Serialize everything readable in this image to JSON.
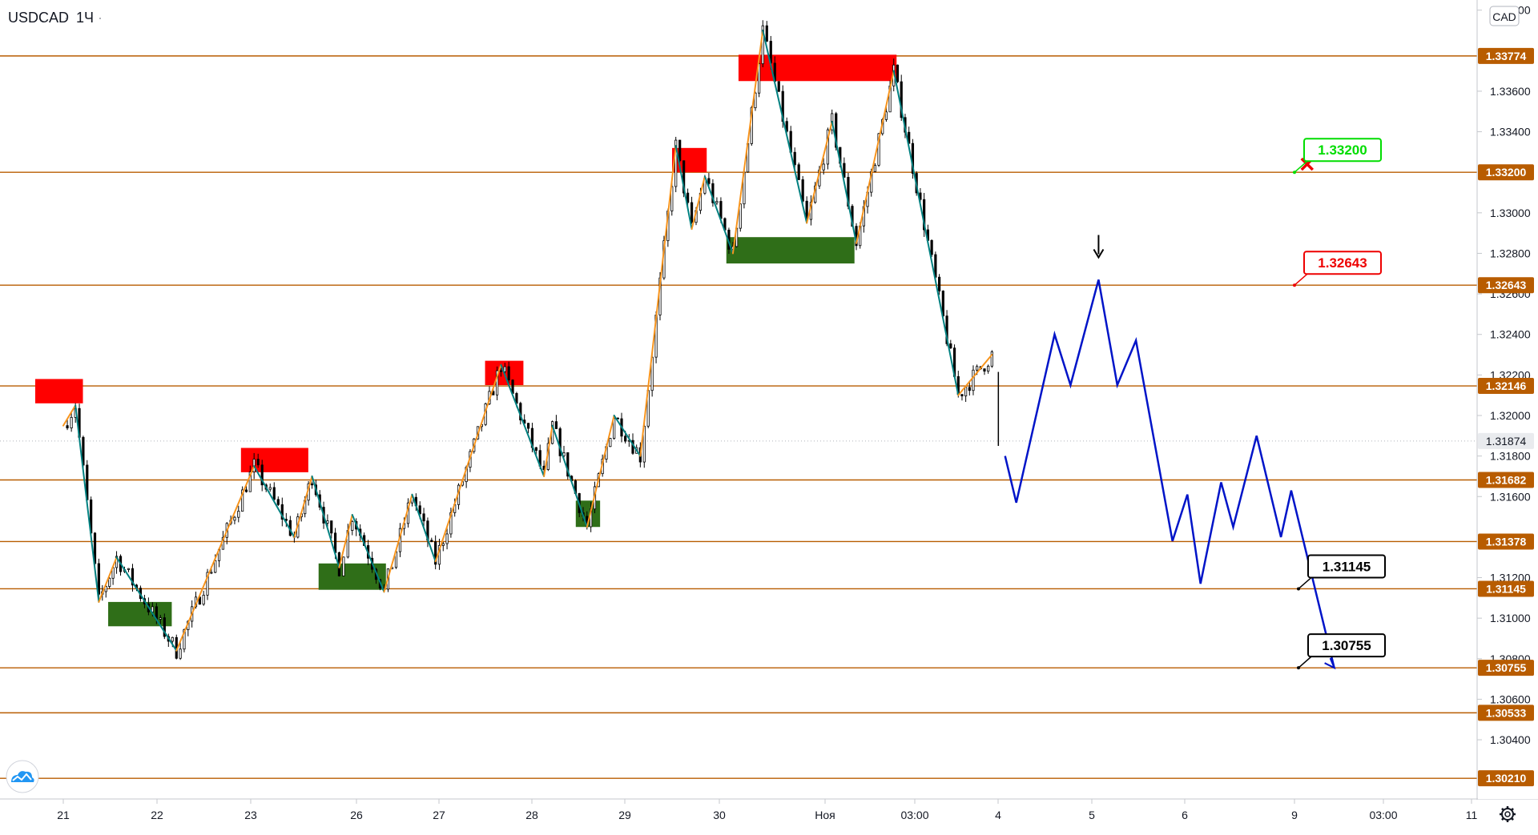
{
  "header": {
    "symbol": "USDCAD",
    "interval": "1Ч"
  },
  "currency_button": "CAD",
  "colors": {
    "level_line": "#b85c00",
    "price_label_bg": "#b85c00",
    "current_price_bg": "#e9ebee",
    "bull_wave": "#f7941d",
    "bear_wave": "#008080",
    "forecast": "#0014c8",
    "supply_zone": "#ff0000",
    "demand_zone": "#2f6e18",
    "target_green": "#00dd00",
    "target_red": "#ee0000",
    "target_black": "#000000"
  },
  "chart_data": {
    "type": "line",
    "symbol": "USDCAD",
    "timeframe": "1Ч",
    "y_axis": {
      "min": 1.301,
      "max": 1.3405,
      "ticks": [
        "1.34000",
        "1.33600",
        "1.33400",
        "1.33000",
        "1.32800",
        "1.32600",
        "1.32400",
        "1.32200",
        "1.32000",
        "1.31800",
        "1.31600",
        "1.31200",
        "1.31000",
        "1.30800",
        "1.30600",
        "1.30400"
      ]
    },
    "x_axis": {
      "ticks": [
        "21",
        "22",
        "23",
        "26",
        "27",
        "28",
        "29",
        "30",
        "Ноя",
        "03:00",
        "4",
        "5",
        "6",
        "9",
        "03:00",
        "11"
      ]
    },
    "current_price": "1.31874",
    "levels": [
      "1.33774",
      "1.33200",
      "1.32643",
      "1.32146",
      "1.31682",
      "1.31378",
      "1.31145",
      "1.30755",
      "1.30533",
      "1.30210"
    ],
    "targets": [
      {
        "value": "1.33200",
        "style": "green"
      },
      {
        "value": "1.32643",
        "style": "red"
      },
      {
        "value": "1.31145",
        "style": "black"
      },
      {
        "value": "1.30755",
        "style": "black"
      }
    ],
    "zigzag_points": [
      [
        0.0,
        1.3195
      ],
      [
        0.13,
        1.3205
      ],
      [
        0.38,
        1.3108
      ],
      [
        0.57,
        1.313
      ],
      [
        1.21,
        1.3084
      ],
      [
        2.04,
        1.3175
      ],
      [
        2.47,
        1.314
      ],
      [
        2.66,
        1.317
      ],
      [
        2.95,
        1.3125
      ],
      [
        3.09,
        1.3151
      ],
      [
        3.43,
        1.3113
      ],
      [
        3.73,
        1.3161
      ],
      [
        3.98,
        1.3128
      ],
      [
        4.68,
        1.3225
      ],
      [
        5.14,
        1.317
      ],
      [
        5.23,
        1.3195
      ],
      [
        5.6,
        1.3145
      ],
      [
        5.89,
        1.32
      ],
      [
        6.17,
        1.318
      ],
      [
        6.55,
        1.3333
      ],
      [
        6.72,
        1.3292
      ],
      [
        6.86,
        1.3318
      ],
      [
        7.16,
        1.328
      ],
      [
        7.48,
        1.339
      ],
      [
        7.95,
        1.3295
      ],
      [
        8.22,
        1.3345
      ],
      [
        8.48,
        1.3285
      ],
      [
        8.88,
        1.337
      ],
      [
        9.57,
        1.321
      ],
      [
        9.93,
        1.323
      ]
    ],
    "forecast_path": [
      [
        10.07,
        1.318
      ],
      [
        10.19,
        1.3157
      ],
      [
        10.6,
        1.324
      ],
      [
        10.77,
        1.3215
      ],
      [
        11.07,
        1.3267
      ],
      [
        11.27,
        1.3215
      ],
      [
        11.47,
        1.3237
      ],
      [
        11.86,
        1.3138
      ],
      [
        12.02,
        1.3161
      ],
      [
        12.16,
        1.3117
      ],
      [
        12.38,
        1.3167
      ],
      [
        12.51,
        1.3145
      ],
      [
        12.76,
        1.319
      ],
      [
        13.02,
        1.314
      ],
      [
        13.13,
        1.3163
      ],
      [
        13.59,
        1.30755
      ]
    ],
    "supply_zones": [
      {
        "x": [
          -0.3,
          0.21
        ],
        "y": [
          1.3206,
          1.3218
        ]
      },
      {
        "x": [
          1.9,
          2.62
        ],
        "y": [
          1.3172,
          1.3184
        ]
      },
      {
        "x": [
          4.51,
          4.92
        ],
        "y": [
          1.3215,
          1.3227
        ]
      },
      {
        "x": [
          6.51,
          6.88
        ],
        "y": [
          1.332,
          1.3332
        ]
      },
      {
        "x": [
          7.22,
          8.91
        ],
        "y": [
          1.3365,
          1.3378
        ]
      }
    ],
    "demand_zones": [
      {
        "x": [
          0.48,
          1.16
        ],
        "y": [
          1.3096,
          1.3108
        ]
      },
      {
        "x": [
          2.73,
          3.45
        ],
        "y": [
          1.3114,
          1.3127
        ]
      },
      {
        "x": [
          5.48,
          5.74
        ],
        "y": [
          1.3145,
          1.3158
        ]
      },
      {
        "x": [
          7.09,
          8.46
        ],
        "y": [
          1.3275,
          1.3288
        ]
      }
    ],
    "markers": [
      {
        "type": "arrow-down",
        "x": 11.07,
        "y": 1.3278
      },
      {
        "type": "cross",
        "x": 13.3,
        "y": 1.3324
      }
    ]
  }
}
